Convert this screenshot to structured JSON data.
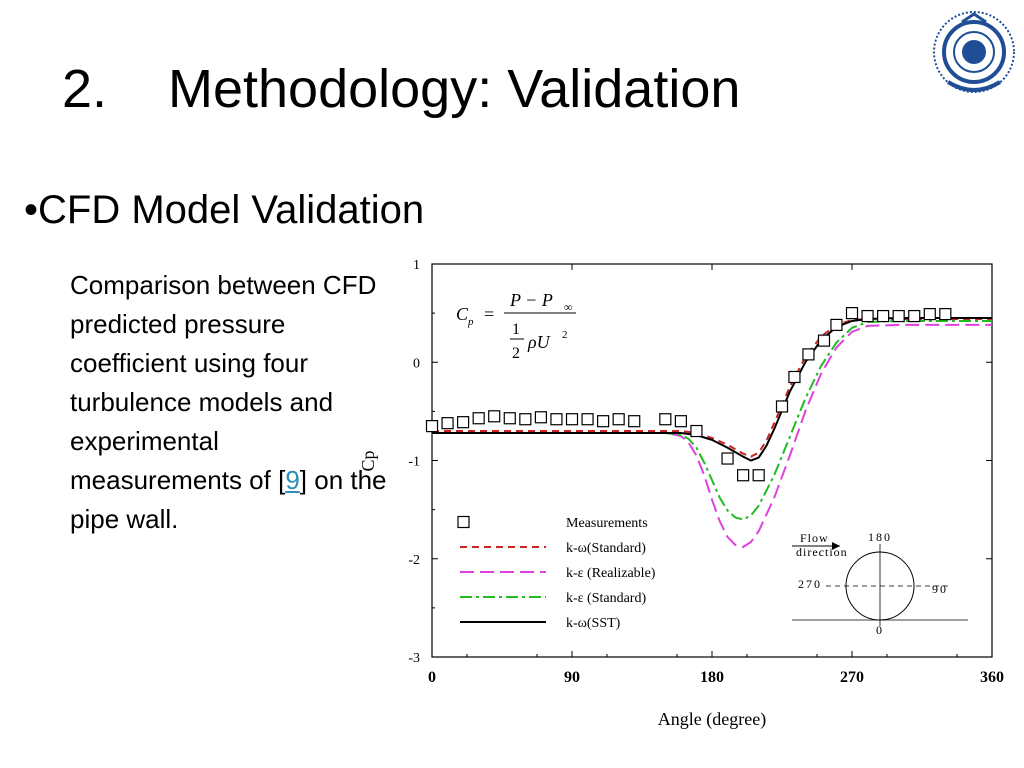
{
  "slide": {
    "title_number": "2.",
    "title_text": "Methodology: Validation",
    "bullet": "•CFD Model Validation",
    "description_before": "Comparison between CFD predicted pressure coefficient using four turbulence models and experimental measurements of [",
    "reference": "9",
    "description_after": "] on the pipe wall."
  },
  "logo": {
    "icon": "university-seal-icon",
    "color": "#1f4e96"
  },
  "chart_data": {
    "type": "line",
    "xlabel": "Angle (degree)",
    "ylabel": "Cp",
    "xlim": [
      0,
      360
    ],
    "ylim": [
      -3,
      1
    ],
    "xticks": [
      "0",
      "90",
      "180",
      "270",
      "360"
    ],
    "yticks": [
      "1",
      "0",
      "-1",
      "-2",
      "-3"
    ],
    "grid": false,
    "legend_position": "bottom-left",
    "formula": {
      "lhs": "C",
      "lhs_sub": "p",
      "eq": "=",
      "numerator": "P − P",
      "numerator_sub": "∞",
      "half_num": "1",
      "half_den": "2",
      "rho_u": "ρU",
      "sq": "2"
    },
    "inset": {
      "flow_label": "Flow",
      "direction_label": "direction",
      "angle_top": "180",
      "angle_left": "270",
      "angle_right": "90",
      "angle_bottom": "0"
    },
    "measurements": {
      "name": "Measurements",
      "color": "#000000",
      "x": [
        0,
        10,
        20,
        30,
        40,
        50,
        60,
        70,
        80,
        90,
        100,
        110,
        120,
        130,
        150,
        160,
        170,
        190,
        200,
        210,
        225,
        233,
        242,
        252,
        260,
        270,
        280,
        290,
        300,
        310,
        320,
        330
      ],
      "y": [
        -0.65,
        -0.62,
        -0.61,
        -0.57,
        -0.55,
        -0.57,
        -0.58,
        -0.56,
        -0.58,
        -0.58,
        -0.58,
        -0.6,
        -0.58,
        -0.6,
        -0.58,
        -0.6,
        -0.7,
        -0.98,
        -1.15,
        -1.15,
        -0.45,
        -0.15,
        0.08,
        0.22,
        0.38,
        0.5,
        0.47,
        0.47,
        0.47,
        0.47,
        0.49,
        0.49
      ]
    },
    "series": [
      {
        "name": "k-ω(Standard)",
        "color": "#cc2222",
        "dash": "7,5",
        "x": [
          0,
          120,
          160,
          170,
          180,
          190,
          200,
          205,
          210,
          215,
          220,
          230,
          240,
          250,
          260,
          270,
          280,
          300,
          360
        ],
        "y": [
          -0.7,
          -0.7,
          -0.7,
          -0.72,
          -0.77,
          -0.84,
          -0.93,
          -0.96,
          -0.92,
          -0.8,
          -0.62,
          -0.25,
          0.05,
          0.26,
          0.38,
          0.43,
          0.44,
          0.44,
          0.44
        ]
      },
      {
        "name": "k-ε (Realizable)",
        "color": "#e040e0",
        "dash": "14,6",
        "x": [
          0,
          150,
          160,
          165,
          170,
          175,
          180,
          185,
          190,
          195,
          200,
          205,
          210,
          220,
          230,
          240,
          250,
          260,
          270,
          280,
          300,
          360
        ],
        "y": [
          -0.72,
          -0.72,
          -0.75,
          -0.82,
          -0.95,
          -1.15,
          -1.4,
          -1.62,
          -1.78,
          -1.86,
          -1.88,
          -1.83,
          -1.72,
          -1.38,
          -0.95,
          -0.5,
          -0.12,
          0.15,
          0.31,
          0.37,
          0.38,
          0.38
        ]
      },
      {
        "name": "k-ε (Standard)",
        "color": "#22bb22",
        "dash": "12,4,3,4",
        "x": [
          0,
          150,
          160,
          165,
          170,
          175,
          180,
          185,
          190,
          195,
          200,
          205,
          210,
          220,
          230,
          240,
          250,
          260,
          270,
          280,
          300,
          360
        ],
        "y": [
          -0.72,
          -0.72,
          -0.74,
          -0.78,
          -0.87,
          -1.02,
          -1.2,
          -1.38,
          -1.51,
          -1.58,
          -1.6,
          -1.56,
          -1.46,
          -1.15,
          -0.76,
          -0.37,
          -0.04,
          0.2,
          0.35,
          0.41,
          0.42,
          0.42
        ]
      },
      {
        "name": "k-ω(SST)",
        "color": "#000000",
        "dash": "",
        "x": [
          0,
          120,
          160,
          170,
          180,
          190,
          200,
          205,
          210,
          215,
          220,
          230,
          240,
          250,
          260,
          270,
          280,
          300,
          360
        ],
        "y": [
          -0.72,
          -0.72,
          -0.72,
          -0.74,
          -0.79,
          -0.87,
          -0.96,
          -1.0,
          -0.97,
          -0.85,
          -0.68,
          -0.3,
          0.0,
          0.22,
          0.36,
          0.42,
          0.44,
          0.45,
          0.45
        ]
      }
    ]
  }
}
